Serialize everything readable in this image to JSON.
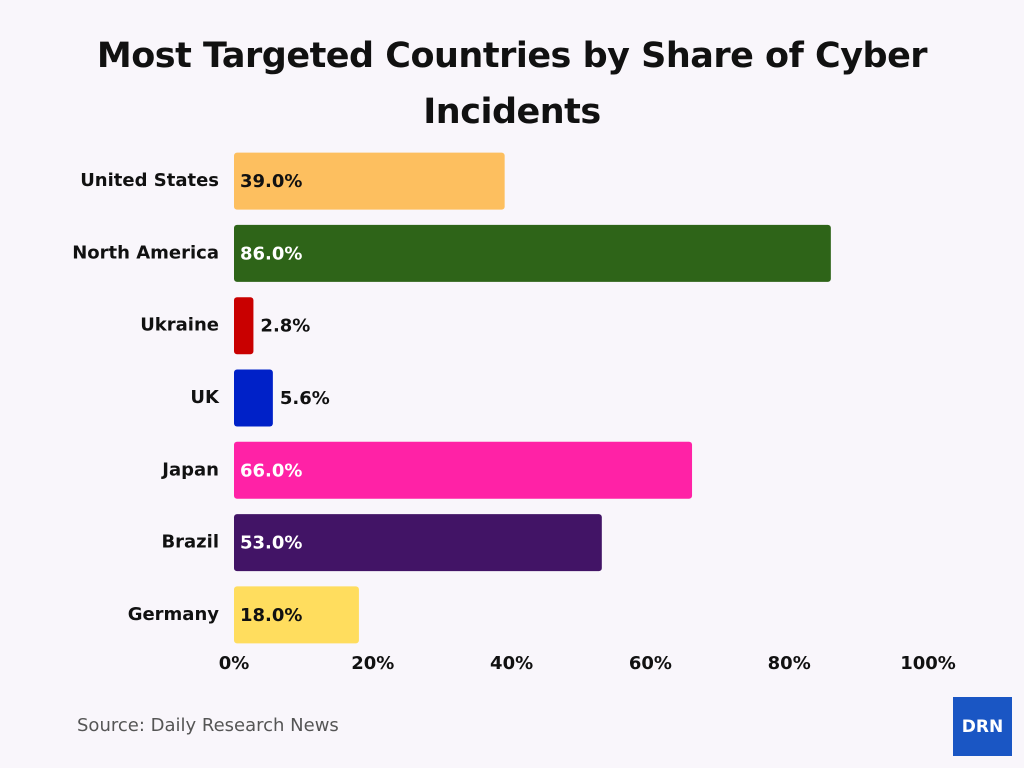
{
  "chart_data": {
    "type": "barh",
    "title": "Most Targeted Countries by Share of Cyber Incidents",
    "categories": [
      "United States",
      "North America",
      "Ukraine",
      "UK",
      "Japan",
      "Brazil",
      "Germany"
    ],
    "values": [
      39.0,
      86.0,
      2.8,
      5.6,
      66.0,
      53.0,
      18.0
    ],
    "value_labels": [
      "39.0%",
      "86.0%",
      "2.8%",
      "5.6%",
      "66.0%",
      "53.0%",
      "18.0%"
    ],
    "colors": [
      "#fdbf5f",
      "#2e6418",
      "#c90000",
      "#0021c8",
      "#ff22a6",
      "#421466",
      "#ffdd5e"
    ],
    "xlim": [
      0,
      100
    ],
    "xticks": [
      {
        "value": 0,
        "label": "0%"
      },
      {
        "value": 20,
        "label": "20%"
      },
      {
        "value": 40,
        "label": "40%"
      },
      {
        "value": 60,
        "label": "60%"
      },
      {
        "value": 80,
        "label": "80%"
      },
      {
        "value": 100,
        "label": "100%"
      }
    ],
    "grid": false
  },
  "source": "Source: Daily Research News",
  "logo": "DRN"
}
